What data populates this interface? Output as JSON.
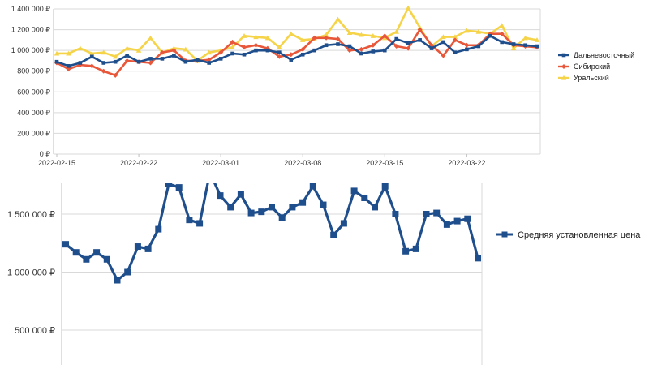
{
  "chart_data": [
    {
      "type": "line",
      "title": "",
      "xlabel": "",
      "ylabel": "",
      "ylim": [
        0,
        1400000
      ],
      "yticks": [
        0,
        200000,
        400000,
        600000,
        800000,
        1000000,
        1200000,
        1400000
      ],
      "ytick_labels": [
        "0 ₽",
        "200 000 ₽",
        "400 000 ₽",
        "600 000 ₽",
        "800 000 ₽",
        "1 000 000 ₽",
        "1 200 000 ₽",
        "1 400 000 ₽"
      ],
      "xtick_labels": [
        "2022-02-15",
        "2022-02-22",
        "2022-03-01",
        "2022-03-08",
        "2022-03-15",
        "2022-03-22"
      ],
      "x": [
        "2022-02-15",
        "2022-02-16",
        "2022-02-17",
        "2022-02-18",
        "2022-02-19",
        "2022-02-20",
        "2022-02-21",
        "2022-02-22",
        "2022-02-23",
        "2022-02-24",
        "2022-02-25",
        "2022-02-26",
        "2022-02-27",
        "2022-02-28",
        "2022-03-01",
        "2022-03-02",
        "2022-03-03",
        "2022-03-04",
        "2022-03-05",
        "2022-03-06",
        "2022-03-07",
        "2022-03-08",
        "2022-03-09",
        "2022-03-10",
        "2022-03-11",
        "2022-03-12",
        "2022-03-13",
        "2022-03-14",
        "2022-03-15",
        "2022-03-16",
        "2022-03-17",
        "2022-03-18",
        "2022-03-19",
        "2022-03-20",
        "2022-03-21",
        "2022-03-22",
        "2022-03-23",
        "2022-03-24",
        "2022-03-25",
        "2022-03-26",
        "2022-03-27",
        "2022-03-28"
      ],
      "grid": true,
      "legend_position": "right",
      "series": [
        {
          "name": "Дальневосточный",
          "color": "#1f4e8c",
          "marker": "square",
          "values": [
            890000,
            850000,
            880000,
            940000,
            880000,
            890000,
            950000,
            890000,
            920000,
            920000,
            950000,
            890000,
            910000,
            880000,
            920000,
            970000,
            960000,
            1000000,
            1000000,
            980000,
            910000,
            960000,
            1000000,
            1050000,
            1060000,
            1040000,
            970000,
            990000,
            1000000,
            1110000,
            1070000,
            1100000,
            1020000,
            1080000,
            980000,
            1010000,
            1040000,
            1140000,
            1080000,
            1060000,
            1050000,
            1040000
          ]
        },
        {
          "name": "Сибирский",
          "color": "#e8573a",
          "marker": "diamond",
          "values": [
            880000,
            820000,
            860000,
            850000,
            800000,
            760000,
            900000,
            890000,
            880000,
            980000,
            1000000,
            900000,
            900000,
            910000,
            980000,
            1080000,
            1030000,
            1050000,
            1020000,
            940000,
            960000,
            1010000,
            1120000,
            1120000,
            1110000,
            1000000,
            1010000,
            1050000,
            1140000,
            1040000,
            1020000,
            1200000,
            1050000,
            950000,
            1100000,
            1050000,
            1050000,
            1160000,
            1160000,
            1050000,
            1040000,
            1030000
          ]
        },
        {
          "name": "Уральский",
          "color": "#f5d44a",
          "marker": "triangle",
          "values": [
            970000,
            970000,
            1020000,
            970000,
            980000,
            940000,
            1020000,
            1000000,
            1120000,
            980000,
            1020000,
            1010000,
            900000,
            980000,
            1000000,
            1030000,
            1140000,
            1130000,
            1120000,
            1030000,
            1160000,
            1100000,
            1110000,
            1150000,
            1300000,
            1170000,
            1150000,
            1140000,
            1120000,
            1180000,
            1410000,
            1220000,
            1040000,
            1130000,
            1130000,
            1190000,
            1180000,
            1160000,
            1240000,
            1020000,
            1120000,
            1100000
          ]
        }
      ]
    },
    {
      "type": "line",
      "title": "",
      "xlabel": "",
      "ylabel": "",
      "ylim": [
        300000,
        1800000
      ],
      "yticks": [
        500000,
        1000000,
        1500000
      ],
      "ytick_labels": [
        "500 000 ₽",
        "1 000 000 ₽",
        "1 500 000 ₽"
      ],
      "grid": true,
      "legend_position": "right",
      "series": [
        {
          "name": "Средняя установленная цена",
          "color": "#1f4e8c",
          "marker": "square",
          "values": [
            1240000,
            1170000,
            1110000,
            1170000,
            1110000,
            930000,
            1000000,
            1220000,
            1200000,
            1370000,
            1760000,
            1730000,
            1450000,
            1420000,
            1860000,
            1660000,
            1560000,
            1670000,
            1510000,
            1520000,
            1560000,
            1470000,
            1560000,
            1600000,
            1740000,
            1580000,
            1320000,
            1420000,
            1700000,
            1640000,
            1560000,
            1740000,
            1500000,
            1180000,
            1200000,
            1500000,
            1510000,
            1410000,
            1440000,
            1460000,
            1120000
          ]
        }
      ]
    }
  ]
}
